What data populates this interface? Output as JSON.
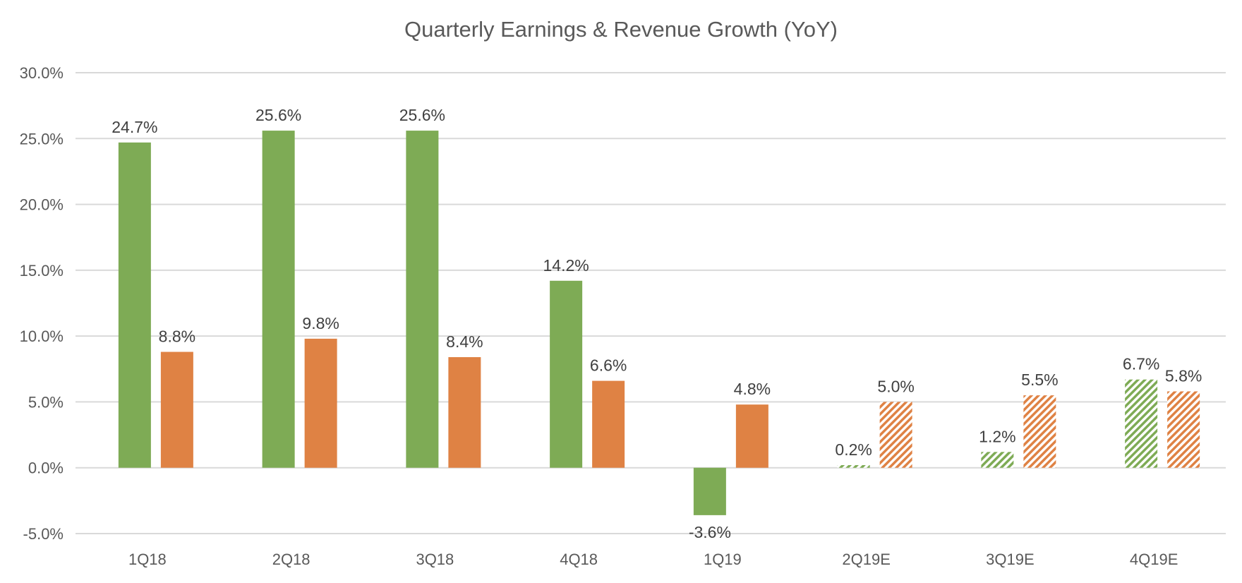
{
  "chart_data": {
    "type": "bar",
    "title": "Quarterly Earnings & Revenue Growth (YoY)",
    "xlabel": "",
    "ylabel": "",
    "ylim": [
      -5,
      30
    ],
    "yticks": [
      "30.0%",
      "25.0%",
      "20.0%",
      "15.0%",
      "10.0%",
      "5.0%",
      "0.0%",
      "-5.0%"
    ],
    "ytick_values": [
      30,
      25,
      20,
      15,
      10,
      5,
      0,
      -5
    ],
    "grid": true,
    "legend": "none",
    "categories": [
      "1Q18",
      "2Q18",
      "3Q18",
      "4Q18",
      "1Q19",
      "2Q19E",
      "3Q19E",
      "4Q19E"
    ],
    "hatched_estimate": [
      false,
      false,
      false,
      false,
      false,
      true,
      true,
      true
    ],
    "series": [
      {
        "color": "#7EAB55",
        "values": [
          24.7,
          25.6,
          25.6,
          14.2,
          -3.6,
          0.2,
          1.2,
          6.7
        ],
        "labels": [
          "24.7%",
          "25.6%",
          "25.6%",
          "14.2%",
          "-3.6%",
          "0.2%",
          "1.2%",
          "6.7%"
        ]
      },
      {
        "color": "#DF8244",
        "values": [
          8.8,
          9.8,
          8.4,
          6.6,
          4.8,
          5.0,
          5.5,
          5.8
        ],
        "labels": [
          "8.8%",
          "9.8%",
          "8.4%",
          "6.6%",
          "4.8%",
          "5.0%",
          "5.5%",
          "5.8%"
        ]
      }
    ]
  }
}
